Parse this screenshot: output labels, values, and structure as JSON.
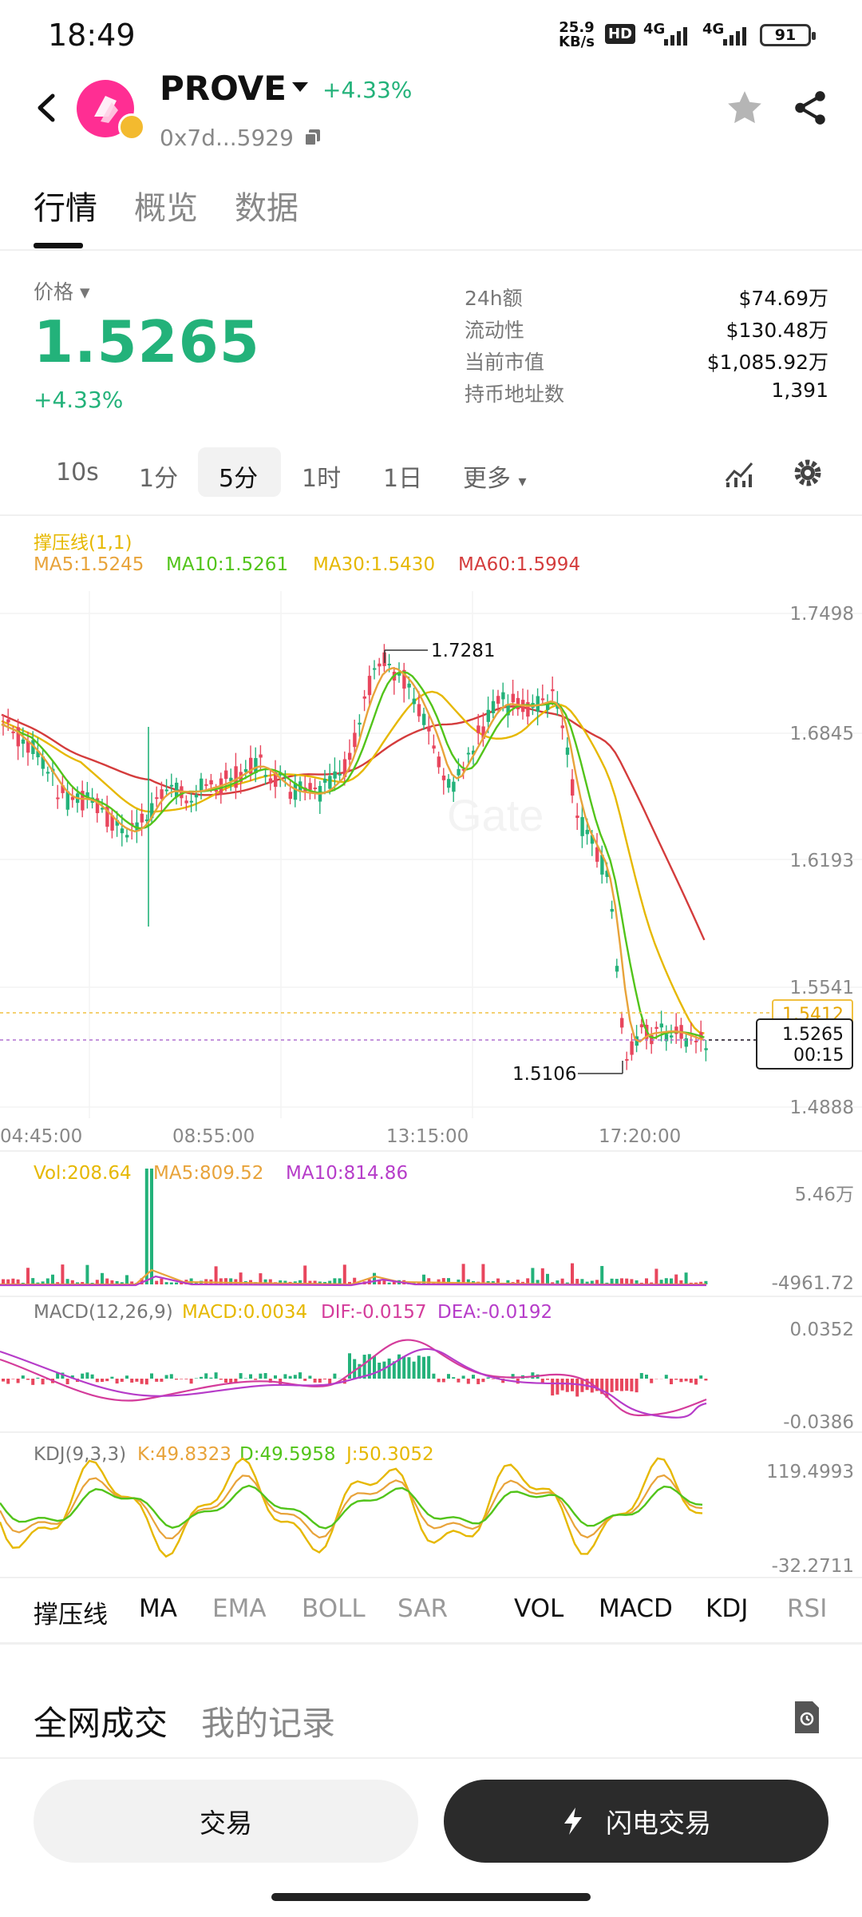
{
  "status_bar": {
    "time": "18:49",
    "speed_value": "25.9",
    "speed_unit": "KB/s",
    "hd": "HD",
    "net1": "4G",
    "net2": "4G",
    "battery": "91"
  },
  "header": {
    "coin": "PROVE",
    "change": "+4.33%",
    "address": "0x7d...5929"
  },
  "tabs": [
    {
      "label": "行情"
    },
    {
      "label": "概览"
    },
    {
      "label": "数据"
    }
  ],
  "price_panel": {
    "label": "价格",
    "price": "1.5265",
    "change": "+4.33%",
    "stats": [
      {
        "label": "24h额",
        "value": "$74.69万"
      },
      {
        "label": "流动性",
        "value": "$130.48万"
      },
      {
        "label": "当前市值",
        "value": "$1,085.92万"
      },
      {
        "label": "持币地址数",
        "value": "1,391"
      }
    ]
  },
  "intervals": [
    {
      "label": "10s"
    },
    {
      "label": "1分"
    },
    {
      "label": "5分"
    },
    {
      "label": "1时"
    },
    {
      "label": "1日"
    },
    {
      "label": "更多"
    }
  ],
  "main_chart": {
    "indicator": "撑压线(1,1)",
    "ma_legend": [
      {
        "label": "MA5:1.5245",
        "color": "#e8a33a"
      },
      {
        "label": "MA10:1.5261",
        "color": "#52c41a"
      },
      {
        "label": "MA30:1.5430",
        "color": "#e6b800"
      },
      {
        "label": "MA60:1.5994",
        "color": "#d43c3c"
      }
    ],
    "y_ticks": [
      "1.7498",
      "1.6845",
      "1.6193",
      "1.5541",
      "1.4888"
    ],
    "high_label": "1.7281",
    "low_label": "1.5106",
    "resistance_label": "1.5412",
    "current_price": "1.5265",
    "countdown": "00:15",
    "x_ticks": [
      "04:45:00",
      "08:55:00",
      "13:15:00",
      "17:20:00"
    ],
    "watermark": "Gate",
    "colors": {
      "up": "#23b27a",
      "down": "#e8465d"
    }
  },
  "volume_chart": {
    "legend": [
      {
        "label": "Vol:208.64",
        "color": "#e6b800"
      },
      {
        "label": "MA5:809.52",
        "color": "#e8a33a"
      },
      {
        "label": "MA10:814.86",
        "color": "#b63cc9"
      }
    ],
    "y_top": "5.46万",
    "y_bottom": "-4961.72"
  },
  "macd_chart": {
    "legend": [
      {
        "label": "MACD(12,26,9)",
        "color": "#777777"
      },
      {
        "label": "MACD:0.0034",
        "color": "#e6b800"
      },
      {
        "label": "DIF:-0.0157",
        "color": "#d43c9b"
      },
      {
        "label": "DEA:-0.0192",
        "color": "#b63cc9"
      }
    ],
    "y_top": "0.0352",
    "y_bottom": "-0.0386"
  },
  "kdj_chart": {
    "legend": [
      {
        "label": "KDJ(9,3,3)",
        "color": "#777777"
      },
      {
        "label": "K:49.8323",
        "color": "#e8a33a"
      },
      {
        "label": "D:49.5958",
        "color": "#52c41a"
      },
      {
        "label": "J:50.3052",
        "color": "#e6b800"
      }
    ],
    "y_top": "119.4993",
    "y_bottom": "-32.2711"
  },
  "indicator_tabs": [
    {
      "label": "撑压线",
      "active": true
    },
    {
      "label": "MA",
      "active": true
    },
    {
      "label": "EMA",
      "active": false
    },
    {
      "label": "BOLL",
      "active": false
    },
    {
      "label": "SAR",
      "active": false
    },
    {
      "label": "VOL",
      "active": true
    },
    {
      "label": "MACD",
      "active": true
    },
    {
      "label": "KDJ",
      "active": true
    },
    {
      "label": "RSI",
      "active": false
    }
  ],
  "trades_tabs": [
    {
      "label": "全网成交"
    },
    {
      "label": "我的记录"
    }
  ],
  "actions": {
    "trade": "交易",
    "flash_trade": "闪电交易"
  }
}
